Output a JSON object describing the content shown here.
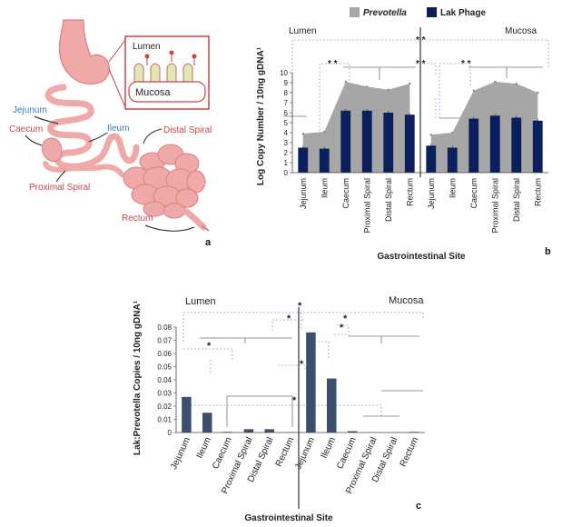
{
  "panel_labels": [
    "a",
    "b",
    "c"
  ],
  "anatomy": {
    "inset_top": "Lumen",
    "inset_bottom": "Mucosa",
    "labels": [
      "Jejunum",
      "Caecum",
      "Ileum",
      "Distal Spiral",
      "Proximal Spiral",
      "Rectum"
    ]
  },
  "colors": {
    "area": "#a6a6a6",
    "bar": "#0a1f5c",
    "bar_c": "#3d4f6e",
    "bracket": "#8fa9d6",
    "gut": "#f0a9a9",
    "gut_stroke": "#d98080",
    "blue_label": "#3b78c2",
    "red_label": "#c94545"
  },
  "chart_data": [
    {
      "type": "bar",
      "panel": "b",
      "ylabel": "Log Copy Number / 10ng gDNA¹",
      "xlabel": "Gastrointestinal Site",
      "ylim": [
        0,
        10
      ],
      "yticks": [
        0,
        1,
        2,
        3,
        4,
        5,
        6,
        7,
        8,
        9,
        10
      ],
      "categories": [
        "Jejunum",
        "Ileum",
        "Caecum",
        "Proximal Spiral",
        "Distal Spiral",
        "Rectum",
        "Jejunum",
        "Ileum",
        "Caecum",
        "Proximal Spiral",
        "Distal Spiral",
        "Rectum"
      ],
      "group_labels": [
        "Lumen",
        "Mucosa"
      ],
      "legend": {
        "position": "top",
        "items": [
          "Prevotella",
          "Lak Phage"
        ]
      },
      "series": [
        {
          "name": "Prevotella",
          "kind": "area",
          "values": [
            3.9,
            4.1,
            9.1,
            8.6,
            8.3,
            8.9,
            3.8,
            4.0,
            8.2,
            9.1,
            8.9,
            8.0
          ]
        },
        {
          "name": "Lak Phage",
          "kind": "bar",
          "values": [
            2.5,
            2.4,
            6.2,
            6.2,
            6.0,
            5.8,
            2.7,
            2.5,
            5.4,
            5.7,
            5.5,
            5.2
          ]
        }
      ],
      "significance": [
        "* *",
        "* *",
        "* *",
        "* *"
      ]
    },
    {
      "type": "bar",
      "panel": "c",
      "ylabel": "Lak:Prevotella Copies / 10ng gDNA¹",
      "xlabel": "Gastrointestinal Site",
      "ylim": [
        0,
        0.08
      ],
      "yticks": [
        "0",
        "0.01",
        "0.02",
        "0.03",
        "0.04",
        "0.05",
        "0.06",
        "0.07",
        "0.08"
      ],
      "categories": [
        "Jejunum",
        "Ileum",
        "Caecum",
        "Proximal Spiral",
        "Distal Spiral",
        "Rectum",
        "Jejunum",
        "Ileum",
        "Caecum",
        "Proximal Spiral",
        "Distal Spiral",
        "Rectum"
      ],
      "group_labels": [
        "Lumen",
        "Mucosa"
      ],
      "values": [
        0.027,
        0.015,
        0.0005,
        0.0025,
        0.0025,
        0.0003,
        0.076,
        0.041,
        0.001,
        0.0001,
        0.0001,
        0.0005
      ],
      "significance": [
        "*",
        "*",
        "*",
        "*",
        "*",
        "*",
        "*"
      ]
    }
  ]
}
